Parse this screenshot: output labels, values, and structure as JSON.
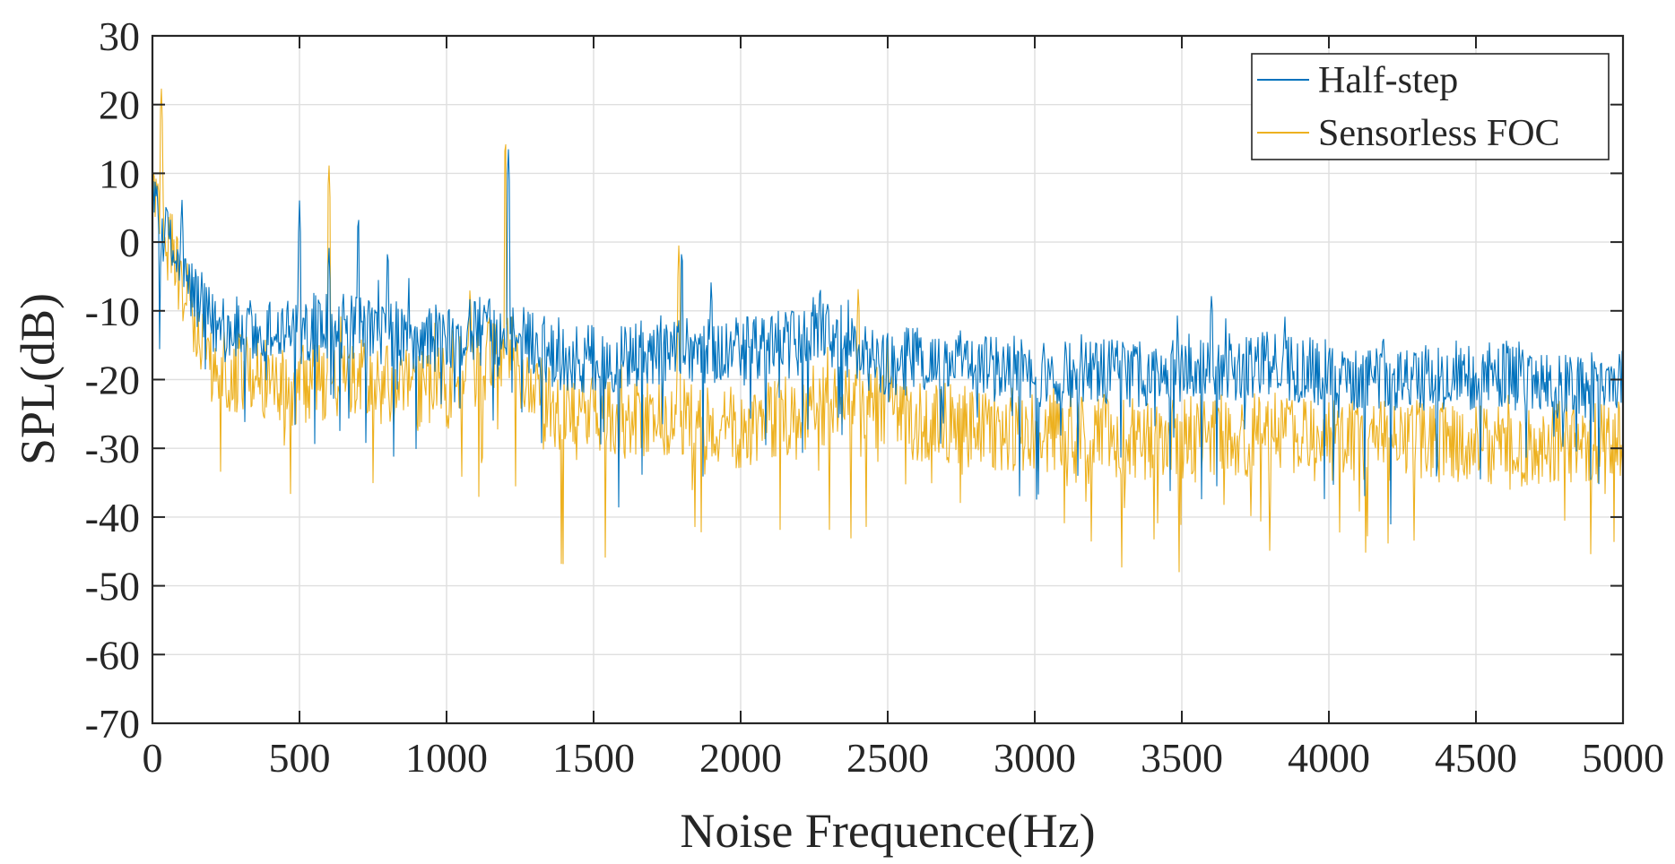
{
  "chart_data": {
    "type": "line",
    "title": "",
    "xlabel": "Noise Frequence(Hz)",
    "ylabel": "SPL(dB)",
    "xlim": [
      0,
      5000
    ],
    "ylim": [
      -70,
      30
    ],
    "xticks": [
      0,
      500,
      1000,
      1500,
      2000,
      2500,
      3000,
      3500,
      4000,
      4500,
      5000
    ],
    "xtick_labels": [
      "0",
      "500",
      "1000",
      "1500",
      "2000",
      "2500",
      "3000",
      "3500",
      "4000",
      "4500",
      "5000"
    ],
    "yticks": [
      -70,
      -60,
      -50,
      -40,
      -30,
      -20,
      -10,
      0,
      10,
      20,
      30
    ],
    "ytick_labels": [
      "-70",
      "-60",
      "-50",
      "-40",
      "-30",
      "-20",
      "-10",
      "0",
      "10",
      "20",
      "30"
    ],
    "grid": true,
    "legend_position": "top-right",
    "series": [
      {
        "name": "Half-step",
        "color": "#0072BD",
        "x": [
          0,
          50,
          100,
          150,
          200,
          300,
          400,
          500,
          600,
          700,
          800,
          900,
          1000,
          1100,
          1200,
          1300,
          1400,
          1500,
          1600,
          1700,
          1800,
          1900,
          2000,
          2100,
          2200,
          2270,
          2400,
          2500,
          2600,
          2800,
          3000,
          3200,
          3400,
          3600,
          3800,
          4000,
          4200,
          4400,
          4600,
          4800,
          5000
        ],
        "values": [
          5,
          0,
          -5,
          -8,
          -12,
          -13,
          -13,
          -13,
          -12,
          -13,
          -13,
          -14,
          -14,
          -13,
          -13,
          -15,
          -17,
          -17,
          -17,
          -16,
          -15,
          -16,
          -16,
          -15,
          -15,
          -12,
          -16,
          -18,
          -17,
          -18,
          -19,
          -19,
          -19,
          -18,
          -18,
          -19,
          -20,
          -20,
          -19,
          -21,
          -20
        ],
        "peaks": [
          [
            10,
            10
          ],
          [
            100,
            7
          ],
          [
            500,
            6
          ],
          [
            600,
            0
          ],
          [
            700,
            5
          ],
          [
            800,
            0
          ],
          [
            1210,
            14
          ],
          [
            1800,
            0
          ],
          [
            1900,
            -5
          ],
          [
            2270,
            -5
          ],
          [
            3600,
            -7
          ],
          [
            3850,
            -10
          ]
        ]
      },
      {
        "name": "Sensorless FOC",
        "color": "#EDB120",
        "x": [
          0,
          50,
          100,
          150,
          200,
          300,
          400,
          500,
          600,
          700,
          800,
          900,
          1000,
          1100,
          1200,
          1300,
          1400,
          1500,
          1600,
          1700,
          1800,
          1900,
          2000,
          2100,
          2200,
          2300,
          2400,
          2500,
          2600,
          2800,
          3000,
          3200,
          3400,
          3600,
          3800,
          4000,
          4200,
          4400,
          4600,
          4800,
          5000
        ],
        "values": [
          8,
          0,
          -6,
          -12,
          -18,
          -19,
          -20,
          -21,
          -20,
          -20,
          -21,
          -22,
          -21,
          -18,
          -15,
          -22,
          -25,
          -25,
          -26,
          -25,
          -25,
          -26,
          -27,
          -26,
          -25,
          -24,
          -23,
          -24,
          -26,
          -27,
          -28,
          -28,
          -29,
          -28,
          -28,
          -29,
          -29,
          -29,
          -30,
          -29,
          -29
        ],
        "peaks": [
          [
            30,
            23
          ],
          [
            600,
            12
          ],
          [
            1080,
            -6
          ],
          [
            1200,
            16
          ],
          [
            1790,
            0
          ],
          [
            2400,
            -6
          ],
          [
            2500,
            -14
          ]
        ]
      }
    ]
  }
}
